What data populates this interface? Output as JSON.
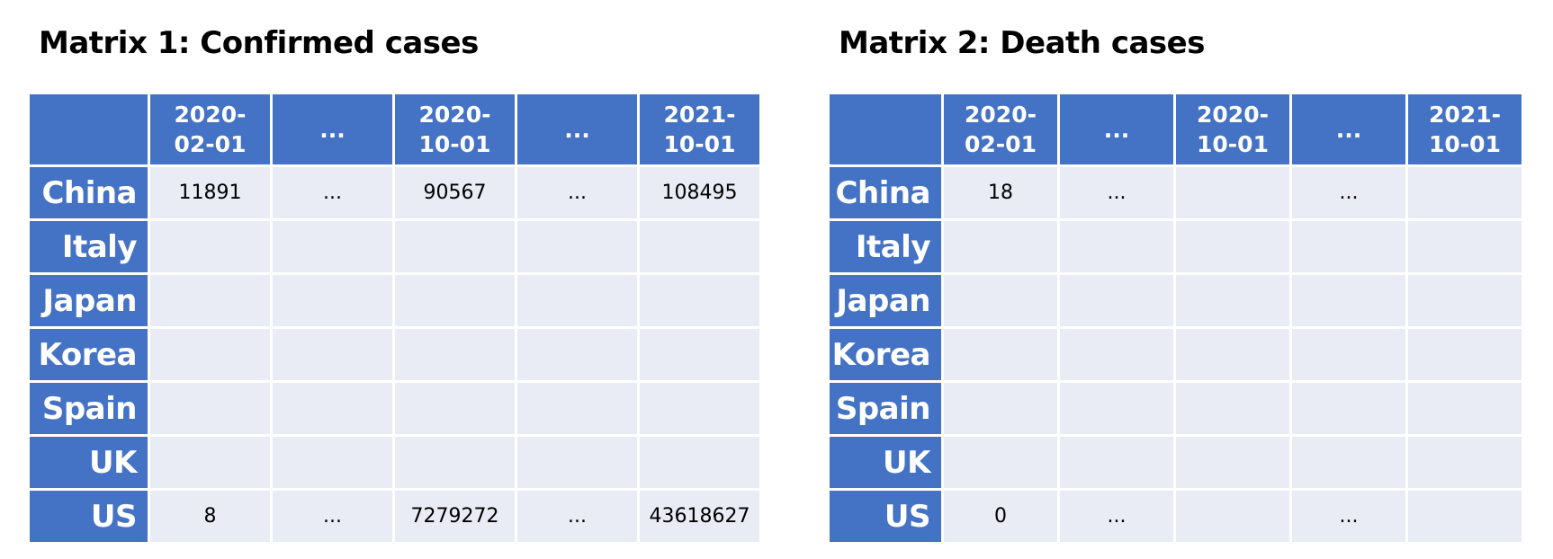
{
  "matrices": [
    {
      "title": "Matrix 1: Confirmed cases",
      "headers": [
        "",
        "2020-\n02-01",
        "...",
        "2020-\n10-01",
        "...",
        "2021-\n10-01"
      ],
      "rows": [
        {
          "label": "China",
          "cells": [
            "11891",
            "...",
            "90567",
            "...",
            "108495"
          ]
        },
        {
          "label": "Italy",
          "cells": [
            "",
            "",
            "",
            "",
            ""
          ]
        },
        {
          "label": "Japan",
          "cells": [
            "",
            "",
            "",
            "",
            ""
          ]
        },
        {
          "label": "Korea",
          "cells": [
            "",
            "",
            "",
            "",
            ""
          ]
        },
        {
          "label": "Spain",
          "cells": [
            "",
            "",
            "",
            "",
            ""
          ]
        },
        {
          "label": "UK",
          "cells": [
            "",
            "",
            "",
            "",
            ""
          ]
        },
        {
          "label": "US",
          "cells": [
            "8",
            "...",
            "7279272",
            "...",
            "43618627"
          ]
        }
      ]
    },
    {
      "title": "Matrix 2: Death cases",
      "headers": [
        "",
        "2020-\n02-01",
        "...",
        "2020-\n10-01",
        "...",
        "2021-\n10-01"
      ],
      "rows": [
        {
          "label": "China",
          "cells": [
            "18",
            "...",
            "",
            "...",
            ""
          ]
        },
        {
          "label": "Italy",
          "cells": [
            "",
            "",
            "",
            "",
            ""
          ]
        },
        {
          "label": "Japan",
          "cells": [
            "",
            "",
            "",
            "",
            ""
          ]
        },
        {
          "label": "Korea",
          "cells": [
            "",
            "",
            "",
            "",
            ""
          ]
        },
        {
          "label": "Spain",
          "cells": [
            "",
            "",
            "",
            "",
            ""
          ]
        },
        {
          "label": "UK",
          "cells": [
            "",
            "",
            "",
            "",
            ""
          ]
        },
        {
          "label": "US",
          "cells": [
            "0",
            "...",
            "",
            "...",
            ""
          ]
        }
      ]
    }
  ],
  "colors": {
    "header_bg": "#4472c4",
    "cell_bg": "#e9ebf5",
    "grid_line": "#ffffff"
  }
}
